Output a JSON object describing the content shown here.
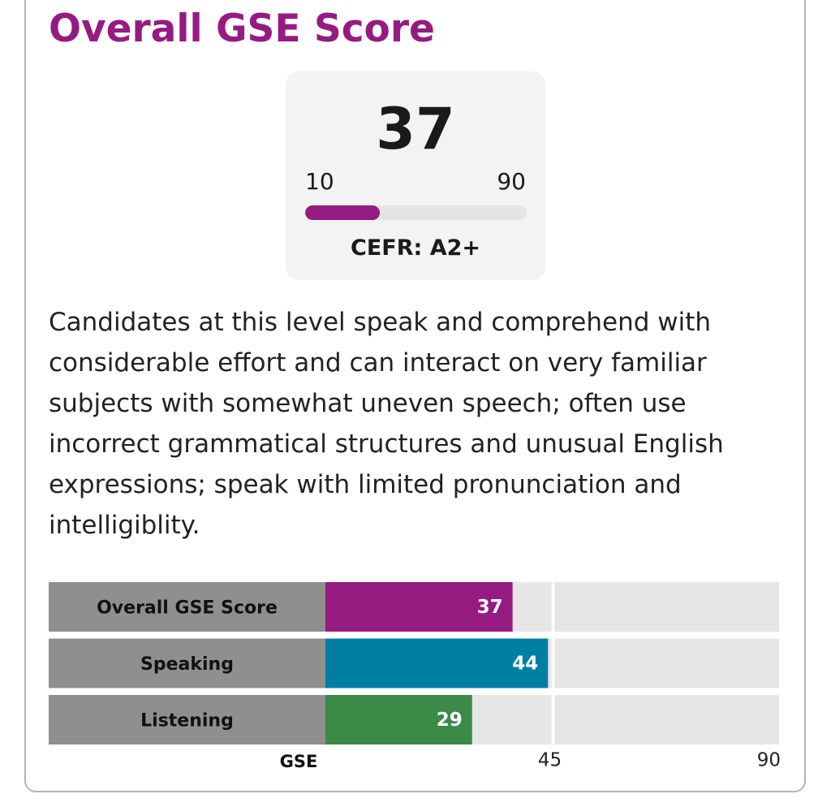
{
  "header": {
    "title": "Overall GSE Score"
  },
  "score_card": {
    "score": 37,
    "min": 10,
    "max": 90,
    "cefr": "CEFR: A2+"
  },
  "description": "Candidates at this level speak and comprehend with considerable effort and can interact on very familiar subjects with somewhat uneven speech; often use incorrect grammatical structures and unusual English expressions; speak with limited pronunciation and intelligiblity.",
  "chart_data": {
    "type": "bar",
    "orientation": "horizontal",
    "categories": [
      "Overall GSE Score",
      "Speaking",
      "Listening"
    ],
    "values": [
      37,
      44,
      29
    ],
    "colors": [
      "#951b81",
      "#007fa3",
      "#3b8a48"
    ],
    "x_label": "GSE",
    "xlim": [
      0,
      90
    ],
    "xticks": [
      45,
      90
    ],
    "grid": true
  }
}
